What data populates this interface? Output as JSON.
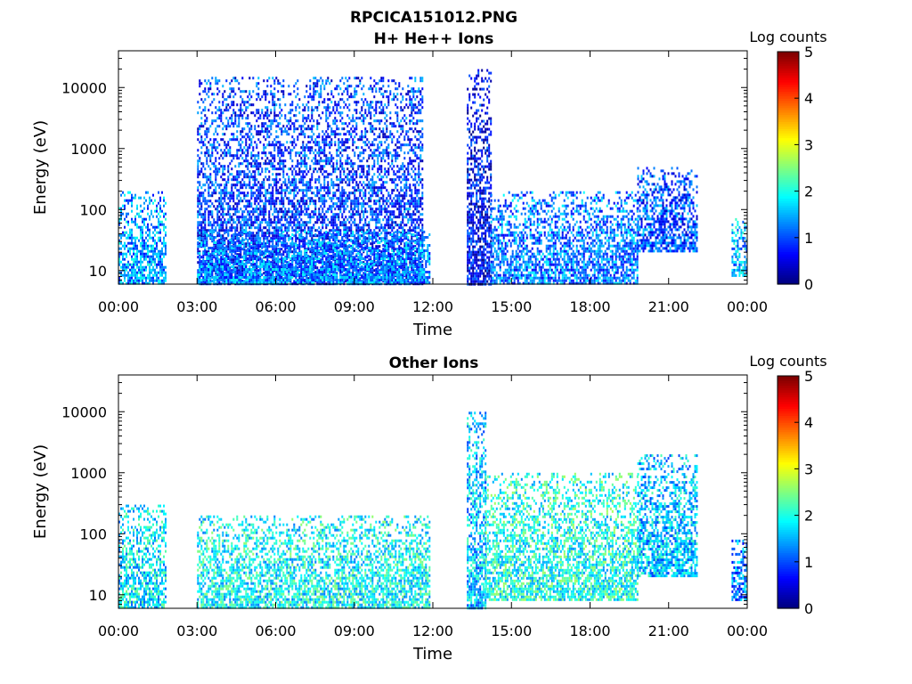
{
  "figure": {
    "title": "RPCICA151012.PNG"
  },
  "chart_data": [
    {
      "type": "heatmap",
      "title": "H+ He++ Ions",
      "xlabel": "Time",
      "ylabel": "Energy (eV)",
      "xticks": [
        "00:00",
        "03:00",
        "06:00",
        "09:00",
        "12:00",
        "15:00",
        "18:00",
        "21:00",
        "00:00"
      ],
      "xlim_hours": [
        0,
        24
      ],
      "yscale": "log",
      "yticks": [
        10,
        100,
        1000,
        10000
      ],
      "ytick_labels": [
        "10",
        "100",
        "1000",
        "10000"
      ],
      "ylim": [
        6,
        40000
      ],
      "colorbar": {
        "label": "Log counts",
        "range": [
          0,
          5
        ],
        "ticks": [
          "0",
          "1",
          "2",
          "3",
          "4",
          "5"
        ],
        "colormap": "jet"
      },
      "blocks": [
        {
          "start_h": 0.0,
          "end_h": 1.8,
          "e_low": 6,
          "e_high": 200,
          "level": 1.4
        },
        {
          "start_h": 3.0,
          "end_h": 11.6,
          "e_low": 6,
          "e_high": 15000,
          "level": 0.9
        },
        {
          "start_h": 3.0,
          "end_h": 11.9,
          "e_low": 6,
          "e_high": 45,
          "level": 1.3
        },
        {
          "start_h": 13.3,
          "end_h": 14.2,
          "e_low": 6,
          "e_high": 20000,
          "level": 0.6
        },
        {
          "start_h": 14.2,
          "end_h": 19.8,
          "e_low": 6,
          "e_high": 200,
          "level": 1.2
        },
        {
          "start_h": 19.8,
          "end_h": 22.1,
          "e_low": 20,
          "e_high": 500,
          "level": 1.0
        },
        {
          "start_h": 23.4,
          "end_h": 24.0,
          "e_low": 8,
          "e_high": 80,
          "level": 1.5
        }
      ]
    },
    {
      "type": "heatmap",
      "title": "Other Ions",
      "xlabel": "Time",
      "ylabel": "Energy (eV)",
      "xticks": [
        "00:00",
        "03:00",
        "06:00",
        "09:00",
        "12:00",
        "15:00",
        "18:00",
        "21:00",
        "00:00"
      ],
      "xlim_hours": [
        0,
        24
      ],
      "yscale": "log",
      "yticks": [
        10,
        100,
        1000,
        10000
      ],
      "ytick_labels": [
        "10",
        "100",
        "1000",
        "10000"
      ],
      "ylim": [
        6,
        40000
      ],
      "colorbar": {
        "label": "Log counts",
        "range": [
          0,
          5
        ],
        "ticks": [
          "0",
          "1",
          "2",
          "3",
          "4",
          "5"
        ],
        "colormap": "jet"
      },
      "blocks": [
        {
          "start_h": 0.0,
          "end_h": 1.8,
          "e_low": 6,
          "e_high": 300,
          "level": 1.8
        },
        {
          "start_h": 3.0,
          "end_h": 11.9,
          "e_low": 6,
          "e_high": 200,
          "level": 1.9
        },
        {
          "start_h": 13.3,
          "end_h": 14.0,
          "e_low": 6,
          "e_high": 10000,
          "level": 1.6
        },
        {
          "start_h": 14.0,
          "end_h": 19.8,
          "e_low": 8,
          "e_high": 1000,
          "level": 2.0
        },
        {
          "start_h": 19.8,
          "end_h": 22.1,
          "e_low": 20,
          "e_high": 2000,
          "level": 1.6
        },
        {
          "start_h": 23.4,
          "end_h": 24.0,
          "e_low": 8,
          "e_high": 80,
          "level": 1.2
        }
      ]
    }
  ]
}
